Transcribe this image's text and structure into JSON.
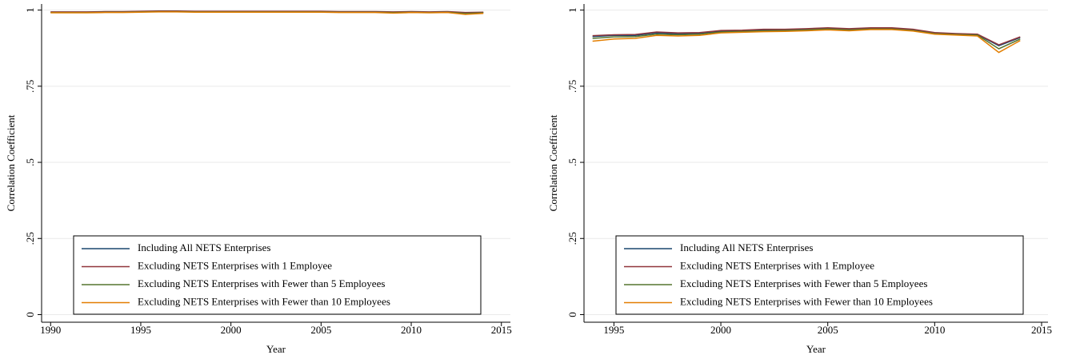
{
  "chart_data": [
    {
      "type": "line",
      "xlabel": "Year",
      "ylabel": "Correlation Coefficient",
      "x": [
        1990,
        1991,
        1992,
        1993,
        1994,
        1995,
        1996,
        1997,
        1998,
        1999,
        2000,
        2001,
        2002,
        2003,
        2004,
        2005,
        2006,
        2007,
        2008,
        2009,
        2010,
        2011,
        2012,
        2013,
        2014
      ],
      "series": [
        {
          "name": "Including All NETS Enterprises",
          "color": "#1a476f",
          "values": [
            0.993,
            0.993,
            0.993,
            0.994,
            0.994,
            0.995,
            0.996,
            0.996,
            0.995,
            0.995,
            0.995,
            0.995,
            0.995,
            0.995,
            0.995,
            0.995,
            0.994,
            0.994,
            0.994,
            0.993,
            0.994,
            0.993,
            0.994,
            0.991,
            0.992
          ]
        },
        {
          "name": "Excluding NETS Enterprises with 1 Employee",
          "color": "#90353b",
          "values": [
            0.994,
            0.994,
            0.994,
            0.995,
            0.995,
            0.996,
            0.997,
            0.997,
            0.996,
            0.996,
            0.996,
            0.996,
            0.996,
            0.996,
            0.996,
            0.996,
            0.995,
            0.995,
            0.995,
            0.994,
            0.995,
            0.994,
            0.995,
            0.992,
            0.993
          ]
        },
        {
          "name": "Excluding NETS Enterprises with Fewer than 5 Employees",
          "color": "#55752f",
          "values": [
            0.992,
            0.992,
            0.992,
            0.993,
            0.993,
            0.994,
            0.995,
            0.995,
            0.994,
            0.994,
            0.994,
            0.994,
            0.994,
            0.994,
            0.994,
            0.994,
            0.993,
            0.993,
            0.993,
            0.992,
            0.993,
            0.992,
            0.993,
            0.989,
            0.991
          ]
        },
        {
          "name": "Excluding NETS Enterprises with Fewer than 10 Employees",
          "color": "#e37e00",
          "values": [
            0.991,
            0.991,
            0.991,
            0.992,
            0.992,
            0.993,
            0.994,
            0.994,
            0.993,
            0.993,
            0.993,
            0.993,
            0.993,
            0.993,
            0.993,
            0.993,
            0.992,
            0.992,
            0.992,
            0.99,
            0.992,
            0.991,
            0.992,
            0.986,
            0.989
          ]
        }
      ],
      "xlim": [
        1989.5,
        2015.5
      ],
      "ylim": [
        -0.025,
        1.02
      ],
      "xticks": [
        1990,
        1995,
        2000,
        2005,
        2010,
        2015
      ],
      "yticks": [
        0,
        {
          "value": 0.25,
          "label": ".25"
        },
        {
          "value": 0.5,
          "label": ".5"
        },
        {
          "value": 0.75,
          "label": ".75"
        },
        1
      ],
      "grid": true,
      "legend": "bottom"
    },
    {
      "type": "line",
      "xlabel": "Year",
      "ylabel": "Correlation Coefficient",
      "x": [
        1994,
        1995,
        1996,
        1997,
        1998,
        1999,
        2000,
        2001,
        2002,
        2003,
        2004,
        2005,
        2006,
        2007,
        2008,
        2009,
        2010,
        2011,
        2012,
        2013,
        2014
      ],
      "series": [
        {
          "name": "Including All NETS Enterprises",
          "color": "#1a476f",
          "values": [
            0.913,
            0.917,
            0.917,
            0.925,
            0.922,
            0.923,
            0.93,
            0.932,
            0.935,
            0.935,
            0.937,
            0.94,
            0.937,
            0.94,
            0.94,
            0.935,
            0.925,
            0.922,
            0.92,
            0.883,
            0.91
          ]
        },
        {
          "name": "Excluding NETS Enterprises with 1 Employee",
          "color": "#90353b",
          "values": [
            0.916,
            0.919,
            0.92,
            0.928,
            0.925,
            0.926,
            0.933,
            0.934,
            0.937,
            0.937,
            0.939,
            0.942,
            0.939,
            0.942,
            0.942,
            0.937,
            0.926,
            0.923,
            0.921,
            0.886,
            0.912
          ]
        },
        {
          "name": "Excluding NETS Enterprises with Fewer than 5 Employees",
          "color": "#55752f",
          "values": [
            0.907,
            0.912,
            0.913,
            0.921,
            0.919,
            0.921,
            0.928,
            0.93,
            0.932,
            0.933,
            0.935,
            0.938,
            0.935,
            0.938,
            0.938,
            0.933,
            0.923,
            0.92,
            0.918,
            0.873,
            0.905
          ]
        },
        {
          "name": "Excluding NETS Enterprises with Fewer than 10 Employees",
          "color": "#e37e00",
          "values": [
            0.898,
            0.905,
            0.907,
            0.917,
            0.915,
            0.917,
            0.925,
            0.927,
            0.929,
            0.93,
            0.932,
            0.935,
            0.932,
            0.936,
            0.936,
            0.931,
            0.921,
            0.918,
            0.915,
            0.861,
            0.9
          ]
        }
      ],
      "xlim": [
        1993.6,
        2015.3
      ],
      "ylim": [
        -0.025,
        1.02
      ],
      "xticks": [
        1995,
        2000,
        2005,
        2010,
        2015
      ],
      "yticks": [
        0,
        {
          "value": 0.25,
          "label": ".25"
        },
        {
          "value": 0.5,
          "label": ".5"
        },
        {
          "value": 0.75,
          "label": ".75"
        },
        1
      ],
      "grid": true,
      "legend": "bottom"
    }
  ]
}
